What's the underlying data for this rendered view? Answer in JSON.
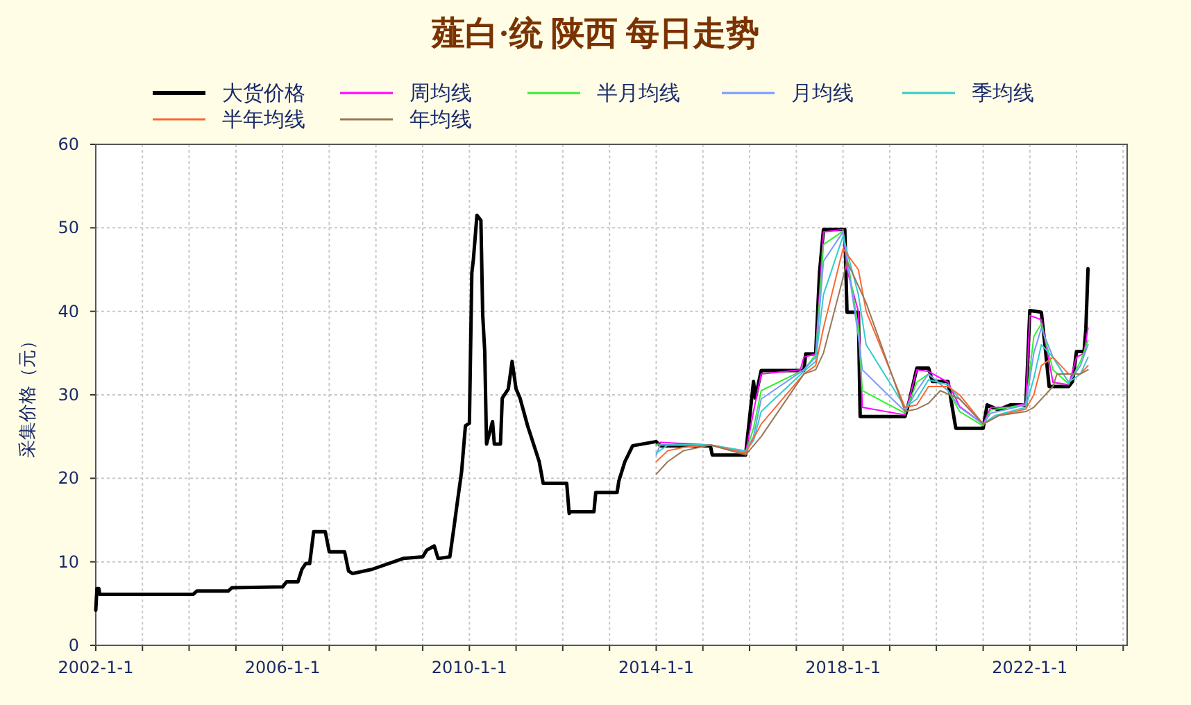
{
  "chart_data": {
    "type": "line",
    "title": "薤白·统 陕西 每日走势",
    "ylabel": "采集价格（元）",
    "xlim": [
      "2002-01-01",
      "2024-02-01"
    ],
    "ylim": [
      0,
      60
    ],
    "yticks": [
      0,
      10,
      20,
      30,
      40,
      50,
      60
    ],
    "xticks": [
      {
        "value": "2002-01-01",
        "label": "2002-1-1"
      },
      {
        "value": "2003-01-01",
        "label": null
      },
      {
        "value": "2004-01-01",
        "label": null
      },
      {
        "value": "2005-01-01",
        "label": null
      },
      {
        "value": "2006-01-01",
        "label": "2006-1-1"
      },
      {
        "value": "2007-01-01",
        "label": null
      },
      {
        "value": "2008-01-01",
        "label": null
      },
      {
        "value": "2009-01-01",
        "label": null
      },
      {
        "value": "2010-01-01",
        "label": "2010-1-1"
      },
      {
        "value": "2011-01-01",
        "label": null
      },
      {
        "value": "2012-01-01",
        "label": null
      },
      {
        "value": "2013-01-01",
        "label": null
      },
      {
        "value": "2014-01-01",
        "label": "2014-1-1"
      },
      {
        "value": "2015-01-01",
        "label": null
      },
      {
        "value": "2016-01-01",
        "label": null
      },
      {
        "value": "2017-01-01",
        "label": null
      },
      {
        "value": "2018-01-01",
        "label": "2018-1-1"
      },
      {
        "value": "2019-01-01",
        "label": null
      },
      {
        "value": "2020-01-01",
        "label": null
      },
      {
        "value": "2021-01-01",
        "label": null
      },
      {
        "value": "2022-01-01",
        "label": "2022-1-1"
      },
      {
        "value": "2023-01-01",
        "label": null
      },
      {
        "value": "2024-01-01",
        "label": null
      }
    ],
    "grid": true,
    "legend": "top",
    "marker": "none",
    "line_style": "solid",
    "series": [
      {
        "name": "大货价格",
        "color": "#000000",
        "x": [
          "2002-01-01",
          "2002-01-10",
          "2002-01-25",
          "2002-02",
          "2004-02",
          "2004-03",
          "2004-11",
          "2004-12",
          "2006-01",
          "2006-02",
          "2006-05",
          "2006-06",
          "2006-07",
          "2006-08",
          "2006-09",
          "2006-12",
          "2007-01",
          "2007-05",
          "2007-06",
          "2007-07",
          "2007-12",
          "2008-08",
          "2009-01",
          "2009-02",
          "2009-04",
          "2009-05",
          "2009-08",
          "2009-09",
          "2009-10",
          "2009-11",
          "2009-12",
          "2010-01",
          "2010-01-20",
          "2010-02",
          "2010-03",
          "2010-04",
          "2010-04-15",
          "2010-05",
          "2010-05-15",
          "2010-07",
          "2010-07-15",
          "2010-09",
          "2010-09-15",
          "2010-11",
          "2010-12",
          "2011-01",
          "2011-02",
          "2011-04",
          "2011-07",
          "2011-08",
          "2012-02",
          "2012-02-20",
          "2012-03",
          "2012-09",
          "2012-09-15",
          "2013-03",
          "2013-03-15",
          "2013-05",
          "2013-07",
          "2014-01",
          "2014-02",
          "2015-03",
          "2015-03-15",
          "2015-12",
          "2016-02",
          "2016-02-15",
          "2016-04",
          "2017-03",
          "2017-03-15",
          "2017-06",
          "2017-07",
          "2017-08",
          "2018-01-15",
          "2018-02",
          "2018-05",
          "2018-05-15",
          "2019-05",
          "2019-06",
          "2019-08",
          "2019-11",
          "2019-12",
          "2020-04",
          "2020-05",
          "2020-06",
          "2021-01",
          "2021-02",
          "2021-05",
          "2021-08",
          "2021-12",
          "2022-01",
          "2022-04",
          "2022-05",
          "2022-06",
          "2022-11",
          "2022-12",
          "2023-01",
          "2023-03",
          "2023-03-15",
          "2023-04"
        ],
        "values": [
          4.2,
          6.8,
          6.8,
          6.1,
          6.1,
          6.5,
          6.5,
          6.9,
          7.0,
          7.6,
          7.6,
          9.1,
          9.8,
          9.8,
          13.6,
          13.6,
          11.2,
          11.2,
          8.9,
          8.6,
          9.1,
          10.4,
          10.6,
          11.4,
          11.9,
          10.4,
          10.6,
          14.0,
          17.4,
          20.8,
          26.3,
          26.6,
          44.6,
          46.2,
          51.5,
          50.9,
          39.6,
          35.2,
          24.1,
          26.8,
          24.1,
          24.1,
          29.6,
          30.7,
          34.0,
          30.7,
          29.6,
          26.3,
          22.0,
          19.4,
          19.4,
          15.8,
          16.0,
          16.0,
          18.3,
          18.3,
          19.7,
          22.0,
          23.9,
          24.4,
          23.9,
          23.9,
          22.8,
          22.8,
          31.6,
          29.6,
          32.9,
          32.9,
          34.9,
          34.9,
          44.6,
          49.8,
          49.8,
          39.9,
          39.9,
          27.4,
          27.4,
          29.1,
          33.2,
          33.2,
          31.6,
          31.6,
          28.8,
          26.0,
          26.0,
          28.8,
          28.2,
          28.8,
          28.8,
          40.1,
          39.9,
          35.7,
          31.0,
          31.0,
          31.6,
          35.2,
          35.2,
          37.9,
          45.1
        ]
      },
      {
        "name": "周均线",
        "color": "#ff00ff",
        "x": [
          "2014-01",
          "2014-02",
          "2015-03",
          "2015-05",
          "2015-12",
          "2016-02",
          "2016-04",
          "2017-02",
          "2017-03",
          "2017-06",
          "2017-08",
          "2018-01",
          "2018-02",
          "2018-05",
          "2018-06",
          "2019-05",
          "2019-08",
          "2019-11",
          "2020-04",
          "2020-07",
          "2021-01",
          "2021-03",
          "2021-08",
          "2021-12",
          "2022-01",
          "2022-04",
          "2022-07",
          "2022-11",
          "2023-01",
          "2023-03",
          "2023-04"
        ],
        "values": [
          24.0,
          24.3,
          24.0,
          23.8,
          23.0,
          28.0,
          32.5,
          33.0,
          34.5,
          34.9,
          49.5,
          49.8,
          45.0,
          40.0,
          28.5,
          27.6,
          33.0,
          32.8,
          31.5,
          28.6,
          26.5,
          28.5,
          28.5,
          29.0,
          39.5,
          39.0,
          31.5,
          31.2,
          34.5,
          35.0,
          38.0
        ]
      },
      {
        "name": "半月均线",
        "color": "#33ee33",
        "x": [
          "2014-01",
          "2015-03",
          "2015-12",
          "2016-02",
          "2016-04",
          "2017-03",
          "2017-06",
          "2017-08",
          "2018-01",
          "2018-05",
          "2018-06",
          "2019-05",
          "2019-08",
          "2019-11",
          "2020-04",
          "2020-07",
          "2021-01",
          "2021-03",
          "2021-12",
          "2022-02",
          "2022-04",
          "2022-07",
          "2022-11",
          "2023-02",
          "2023-04"
        ],
        "values": [
          24.0,
          24.0,
          23.0,
          26.0,
          30.5,
          33.0,
          34.8,
          48.0,
          49.6,
          38.0,
          30.5,
          27.8,
          31.5,
          32.5,
          30.5,
          28.0,
          26.3,
          28.2,
          28.8,
          37.0,
          38.5,
          33.0,
          31.3,
          34.0,
          36.5
        ]
      },
      {
        "name": "月均线",
        "color": "#7799ff",
        "x": [
          "2014-01",
          "2014-02",
          "2015-03",
          "2015-12",
          "2016-02",
          "2016-04",
          "2017-03",
          "2017-06",
          "2017-08",
          "2018-01",
          "2018-05",
          "2018-06",
          "2019-05",
          "2019-08",
          "2019-11",
          "2020-04",
          "2020-07",
          "2021-01",
          "2021-03",
          "2021-12",
          "2022-02",
          "2022-04",
          "2022-07",
          "2022-11",
          "2023-02",
          "2023-04"
        ],
        "values": [
          22.8,
          24.0,
          24.0,
          23.2,
          25.0,
          29.5,
          33.0,
          34.5,
          46.0,
          49.5,
          37.0,
          33.0,
          28.0,
          30.5,
          32.5,
          30.5,
          28.5,
          26.5,
          27.8,
          28.8,
          35.0,
          38.0,
          34.5,
          31.5,
          33.5,
          36.0
        ]
      },
      {
        "name": "季均线",
        "color": "#33cccc",
        "x": [
          "2014-01",
          "2014-04",
          "2015-03",
          "2015-12",
          "2016-02",
          "2016-04",
          "2017-03",
          "2017-06",
          "2017-08",
          "2018-01",
          "2018-05",
          "2018-07",
          "2019-05",
          "2019-08",
          "2019-11",
          "2020-04",
          "2020-07",
          "2021-01",
          "2021-04",
          "2021-12",
          "2022-02",
          "2022-04",
          "2022-07",
          "2022-11",
          "2023-02",
          "2023-04"
        ],
        "values": [
          23.0,
          24.0,
          24.0,
          23.3,
          24.5,
          28.0,
          32.8,
          34.0,
          42.0,
          49.0,
          42.0,
          36.0,
          28.5,
          29.5,
          31.8,
          31.2,
          29.5,
          26.5,
          27.5,
          28.5,
          32.0,
          36.0,
          34.5,
          31.5,
          32.5,
          34.5
        ]
      },
      {
        "name": "半年均线",
        "color": "#ff6633",
        "x": [
          "2014-01",
          "2014-04",
          "2014-08",
          "2015-03",
          "2015-12",
          "2016-04",
          "2017-03",
          "2017-06",
          "2017-08",
          "2018-01",
          "2018-05",
          "2018-07",
          "2019-05",
          "2019-08",
          "2019-11",
          "2020-04",
          "2020-07",
          "2021-01",
          "2021-05",
          "2021-12",
          "2022-02",
          "2022-04",
          "2022-07",
          "2022-11",
          "2023-02",
          "2023-04"
        ],
        "values": [
          22.0,
          23.3,
          23.7,
          24.0,
          23.0,
          26.5,
          32.5,
          33.5,
          38.0,
          47.5,
          45.0,
          40.0,
          28.5,
          28.8,
          31.0,
          31.0,
          30.0,
          26.5,
          27.5,
          28.3,
          30.0,
          33.5,
          34.5,
          32.5,
          32.5,
          33.5
        ]
      },
      {
        "name": "年均线",
        "color": "#997755",
        "x": [
          "2014-01",
          "2014-04",
          "2014-08",
          "2015-03",
          "2015-12",
          "2016-04",
          "2017-03",
          "2017-06",
          "2017-08",
          "2018-01",
          "2018-02",
          "2018-07",
          "2019-05",
          "2019-08",
          "2019-11",
          "2020-02",
          "2020-07",
          "2021-01",
          "2021-05",
          "2021-12",
          "2022-02",
          "2022-07",
          "2022-08",
          "2022-11",
          "2023-02",
          "2023-04"
        ],
        "values": [
          20.5,
          22.0,
          23.3,
          24.0,
          22.8,
          25.0,
          32.5,
          33.0,
          35.0,
          44.0,
          46.0,
          41.0,
          28.0,
          28.3,
          29.0,
          30.5,
          29.5,
          26.5,
          27.5,
          28.0,
          28.5,
          31.0,
          32.5,
          32.5,
          32.5,
          33.0
        ]
      }
    ]
  }
}
